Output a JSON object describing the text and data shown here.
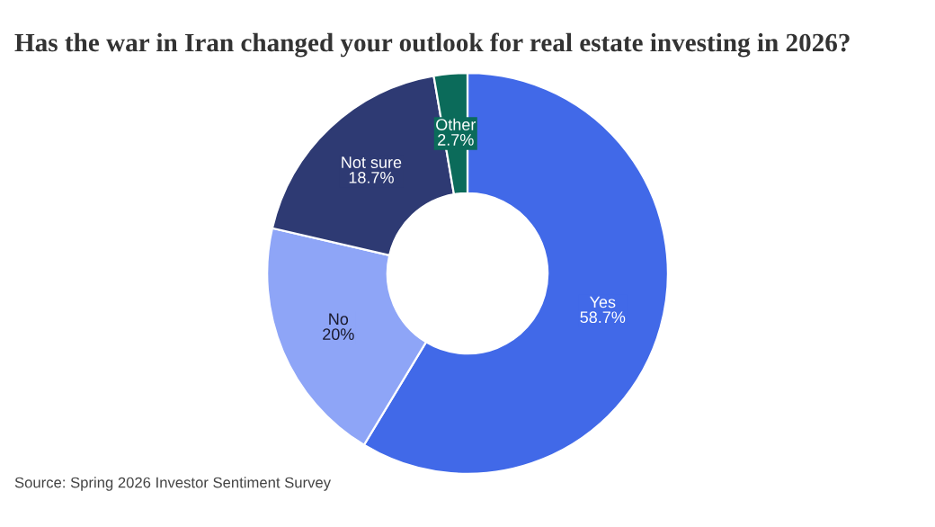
{
  "chart_data": {
    "type": "donut",
    "title": "Has the war in Iran changed your outlook for real estate investing in 2026?",
    "categories": [
      "Yes",
      "No",
      "Not sure",
      "Other"
    ],
    "values": [
      58.7,
      20,
      18.7,
      2.7
    ],
    "colors": [
      "#4169e8",
      "#8ea5f7",
      "#2e3a73",
      "#0b6b5a"
    ],
    "value_labels": [
      "58.7%",
      "20%",
      "18.7%",
      "2.7%"
    ],
    "annotations": [
      "Source: Spring 2026 Investor Sentiment Survey"
    ],
    "legend": false
  }
}
